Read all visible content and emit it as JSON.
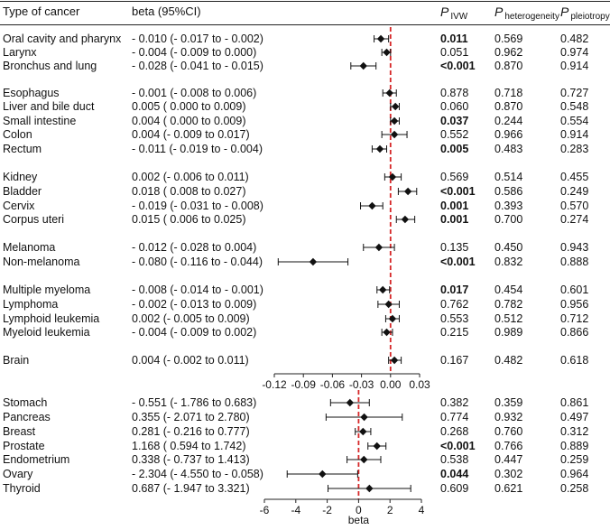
{
  "header": {
    "type_label": "Type of cancer",
    "beta_label": "beta (95%CI)",
    "p_symbol": "P",
    "p_ivw_sub": "IVW",
    "p_het_sub": "heterogeneity",
    "p_pleio_sub": "pleiotropy"
  },
  "colors": {
    "ref_line": "#d62728",
    "marker": "#111111"
  },
  "chart_data": [
    {
      "type": "forest",
      "xlabel": "",
      "xlim": [
        -0.12,
        0.03
      ],
      "xticks": [
        "-0.12",
        "-0.09",
        "-0.06",
        "-0.03",
        "0.00",
        "0.03"
      ],
      "reference_line": 0,
      "rows": [
        {
          "name": "Oral cavity and pharynx",
          "beta": -0.01,
          "lo": -0.017,
          "hi": -0.002,
          "ci_text": "- 0.010 (- 0.017 to - 0.002)",
          "p_ivw": "0.011",
          "p_ivw_bold": true,
          "p_het": "0.569",
          "p_pleio": "0.482"
        },
        {
          "name": "Larynx",
          "beta": -0.004,
          "lo": -0.009,
          "hi": 0.0,
          "ci_text": "- 0.004 (- 0.009 to 0.000)",
          "p_ivw": "0.051",
          "p_ivw_bold": false,
          "p_het": "0.962",
          "p_pleio": "0.974"
        },
        {
          "name": "Bronchus and lung",
          "beta": -0.028,
          "lo": -0.041,
          "hi": -0.015,
          "ci_text": "- 0.028 (- 0.041 to - 0.015)",
          "p_ivw": "<0.001",
          "p_ivw_bold": true,
          "p_het": "0.870",
          "p_pleio": "0.914"
        },
        {
          "name": "Esophagus",
          "beta": -0.001,
          "lo": -0.008,
          "hi": 0.006,
          "ci_text": "- 0.001 (- 0.008 to 0.006)",
          "p_ivw": "0.878",
          "p_ivw_bold": false,
          "p_het": "0.718",
          "p_pleio": "0.727"
        },
        {
          "name": "Liver and bile duct",
          "beta": 0.005,
          "lo": 0.0,
          "hi": 0.009,
          "ci_text": "0.005 ( 0.000 to 0.009)",
          "p_ivw": "0.060",
          "p_ivw_bold": false,
          "p_het": "0.870",
          "p_pleio": "0.548"
        },
        {
          "name": "Small intestine",
          "beta": 0.004,
          "lo": 0.0,
          "hi": 0.009,
          "ci_text": "0.004 ( 0.000 to 0.009)",
          "p_ivw": "0.037",
          "p_ivw_bold": true,
          "p_het": "0.244",
          "p_pleio": "0.554"
        },
        {
          "name": "Colon",
          "beta": 0.004,
          "lo": -0.009,
          "hi": 0.017,
          "ci_text": "0.004 (- 0.009 to 0.017)",
          "p_ivw": "0.552",
          "p_ivw_bold": false,
          "p_het": "0.966",
          "p_pleio": "0.914"
        },
        {
          "name": "Rectum",
          "beta": -0.011,
          "lo": -0.019,
          "hi": -0.004,
          "ci_text": "- 0.011 (- 0.019 to - 0.004)",
          "p_ivw": "0.005",
          "p_ivw_bold": true,
          "p_het": "0.483",
          "p_pleio": "0.283"
        },
        {
          "name": "Kidney",
          "beta": 0.002,
          "lo": -0.006,
          "hi": 0.011,
          "ci_text": "0.002 (- 0.006 to 0.011)",
          "p_ivw": "0.569",
          "p_ivw_bold": false,
          "p_het": "0.514",
          "p_pleio": "0.455"
        },
        {
          "name": "Bladder",
          "beta": 0.018,
          "lo": 0.008,
          "hi": 0.027,
          "ci_text": "0.018 ( 0.008 to 0.027)",
          "p_ivw": "<0.001",
          "p_ivw_bold": true,
          "p_het": "0.586",
          "p_pleio": "0.249"
        },
        {
          "name": "Cervix",
          "beta": -0.019,
          "lo": -0.031,
          "hi": -0.008,
          "ci_text": "- 0.019 (- 0.031 to - 0.008)",
          "p_ivw": "0.001",
          "p_ivw_bold": true,
          "p_het": "0.393",
          "p_pleio": "0.570"
        },
        {
          "name": "Corpus uteri",
          "beta": 0.015,
          "lo": 0.006,
          "hi": 0.025,
          "ci_text": "0.015 ( 0.006 to 0.025)",
          "p_ivw": "0.001",
          "p_ivw_bold": true,
          "p_het": "0.700",
          "p_pleio": "0.274"
        },
        {
          "name": "Melanoma",
          "beta": -0.012,
          "lo": -0.028,
          "hi": 0.004,
          "ci_text": "- 0.012 (- 0.028 to 0.004)",
          "p_ivw": "0.135",
          "p_ivw_bold": false,
          "p_het": "0.450",
          "p_pleio": "0.943"
        },
        {
          "name": "Non-melanoma",
          "beta": -0.08,
          "lo": -0.116,
          "hi": -0.044,
          "ci_text": "- 0.080 (- 0.116 to - 0.044)",
          "p_ivw": "<0.001",
          "p_ivw_bold": true,
          "p_het": "0.832",
          "p_pleio": "0.888"
        },
        {
          "name": "Multiple myeloma",
          "beta": -0.008,
          "lo": -0.014,
          "hi": -0.001,
          "ci_text": "- 0.008 (- 0.014 to - 0.001)",
          "p_ivw": "0.017",
          "p_ivw_bold": true,
          "p_het": "0.454",
          "p_pleio": "0.601"
        },
        {
          "name": "Lymphoma",
          "beta": -0.002,
          "lo": -0.013,
          "hi": 0.009,
          "ci_text": "- 0.002 (- 0.013 to 0.009)",
          "p_ivw": "0.762",
          "p_ivw_bold": false,
          "p_het": "0.782",
          "p_pleio": "0.956"
        },
        {
          "name": "Lymphoid leukemia",
          "beta": 0.002,
          "lo": -0.005,
          "hi": 0.009,
          "ci_text": "0.002 (- 0.005 to 0.009)",
          "p_ivw": "0.553",
          "p_ivw_bold": false,
          "p_het": "0.512",
          "p_pleio": "0.712"
        },
        {
          "name": "Myeloid leukemia",
          "beta": -0.004,
          "lo": -0.009,
          "hi": 0.002,
          "ci_text": "- 0.004 (- 0.009 to 0.002)",
          "p_ivw": "0.215",
          "p_ivw_bold": false,
          "p_het": "0.989",
          "p_pleio": "0.866"
        },
        {
          "name": "Brain",
          "beta": 0.004,
          "lo": -0.002,
          "hi": 0.011,
          "ci_text": "0.004 (- 0.002 to 0.011)",
          "p_ivw": "0.167",
          "p_ivw_bold": false,
          "p_het": "0.482",
          "p_pleio": "0.618"
        }
      ]
    },
    {
      "type": "forest",
      "xlabel": "beta",
      "xlim": [
        -6,
        4
      ],
      "xticks": [
        "-6",
        "-4",
        "-2",
        "0",
        "2",
        "4"
      ],
      "reference_line": 0,
      "rows": [
        {
          "name": "Stomach",
          "beta": -0.551,
          "lo": -1.786,
          "hi": 0.683,
          "ci_text": "- 0.551 (- 1.786 to 0.683)",
          "p_ivw": "0.382",
          "p_ivw_bold": false,
          "p_het": "0.359",
          "p_pleio": "0.861"
        },
        {
          "name": "Pancreas",
          "beta": 0.355,
          "lo": -2.071,
          "hi": 2.78,
          "ci_text": "0.355 (- 2.071 to 2.780)",
          "p_ivw": "0.774",
          "p_ivw_bold": false,
          "p_het": "0.932",
          "p_pleio": "0.497"
        },
        {
          "name": "Breast",
          "beta": 0.281,
          "lo": -0.216,
          "hi": 0.777,
          "ci_text": "0.281 (- 0.216 to 0.777)",
          "p_ivw": "0.268",
          "p_ivw_bold": false,
          "p_het": "0.760",
          "p_pleio": "0.312"
        },
        {
          "name": "Prostate",
          "beta": 1.168,
          "lo": 0.594,
          "hi": 1.742,
          "ci_text": "1.168 ( 0.594 to 1.742)",
          "p_ivw": "<0.001",
          "p_ivw_bold": true,
          "p_het": "0.766",
          "p_pleio": "0.889"
        },
        {
          "name": "Endometrium",
          "beta": 0.338,
          "lo": -0.737,
          "hi": 1.413,
          "ci_text": "0.338 (- 0.737 to 1.413)",
          "p_ivw": "0.538",
          "p_ivw_bold": false,
          "p_het": "0.447",
          "p_pleio": "0.259"
        },
        {
          "name": "Ovary",
          "beta": -2.304,
          "lo": -4.55,
          "hi": -0.058,
          "ci_text": "- 2.304 (- 4.550 to - 0.058)",
          "p_ivw": "0.044",
          "p_ivw_bold": true,
          "p_het": "0.302",
          "p_pleio": "0.964"
        },
        {
          "name": "Thyroid",
          "beta": 0.687,
          "lo": -1.947,
          "hi": 3.321,
          "ci_text": "0.687 (- 1.947 to 3.321)",
          "p_ivw": "0.609",
          "p_ivw_bold": false,
          "p_het": "0.621",
          "p_pleio": "0.258"
        }
      ]
    }
  ]
}
